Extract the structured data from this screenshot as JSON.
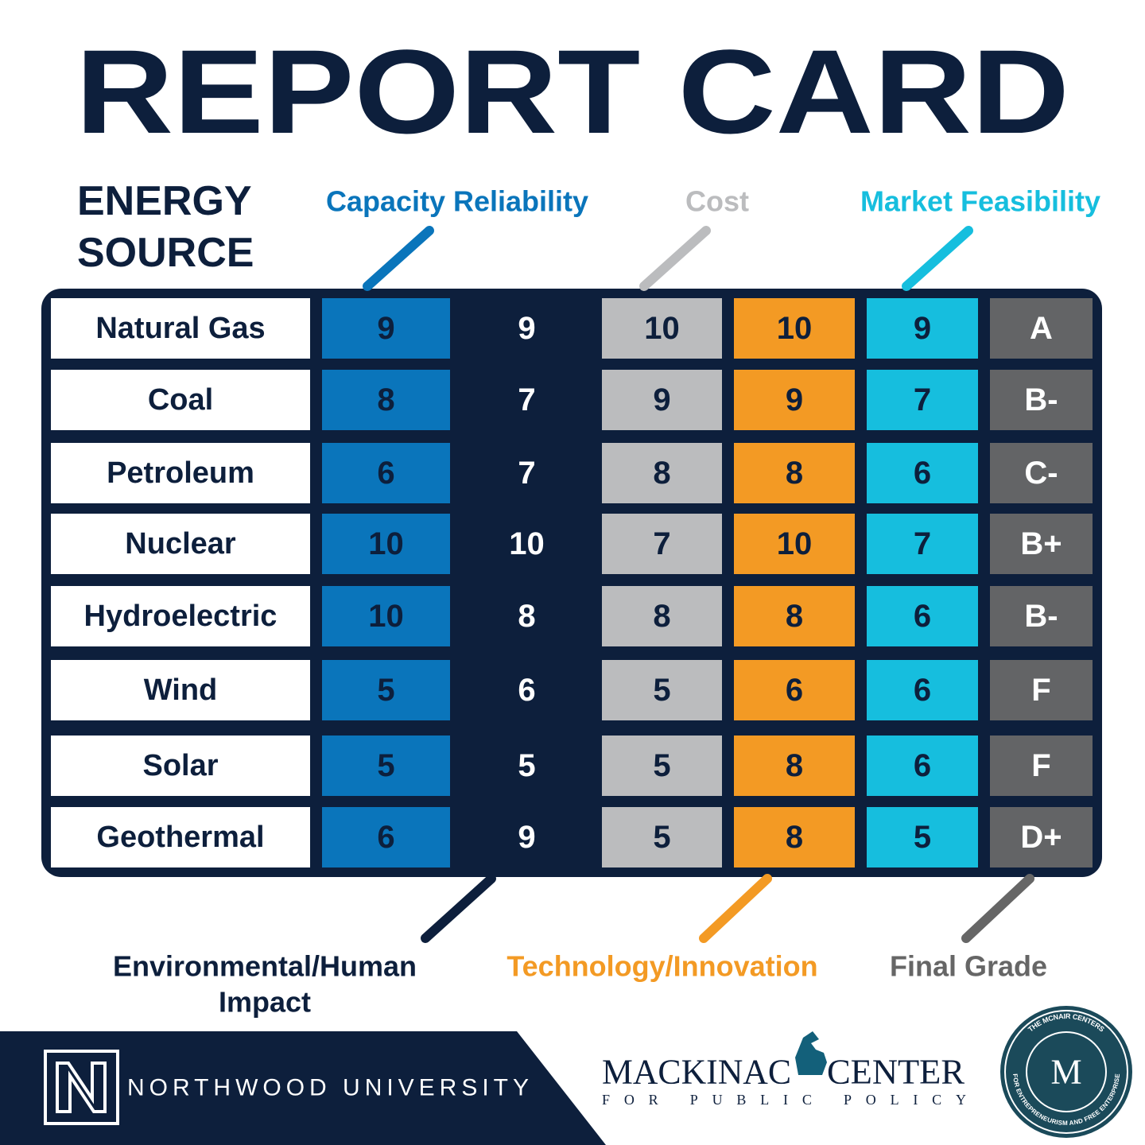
{
  "title": "REPORT CARD",
  "row_header": [
    "ENERGY",
    "SOURCE"
  ],
  "columns": [
    [
      "Capacity Reliability"
    ],
    [
      "Environmental/Human",
      "Impact"
    ],
    [
      "Cost"
    ],
    [
      "Technology/Innovation"
    ],
    [
      "Market Feasibility"
    ],
    [
      "Final Grade"
    ]
  ],
  "rows": [
    {
      "source": "Natural Gas",
      "scores": [
        9,
        9,
        10,
        10,
        9
      ],
      "grade": "A"
    },
    {
      "source": "Coal",
      "scores": [
        8,
        7,
        9,
        9,
        7
      ],
      "grade": "B-"
    },
    {
      "source": "Petroleum",
      "scores": [
        6,
        7,
        8,
        8,
        6
      ],
      "grade": "C-"
    },
    {
      "source": "Nuclear",
      "scores": [
        10,
        10,
        7,
        10,
        7
      ],
      "grade": "B+"
    },
    {
      "source": "Hydroelectric",
      "scores": [
        10,
        8,
        8,
        8,
        6
      ],
      "grade": "B-"
    },
    {
      "source": "Wind",
      "scores": [
        5,
        6,
        5,
        6,
        6
      ],
      "grade": "F"
    },
    {
      "source": "Solar",
      "scores": [
        5,
        5,
        5,
        8,
        6
      ],
      "grade": "F"
    },
    {
      "source": "Geothermal",
      "scores": [
        6,
        9,
        5,
        8,
        5
      ],
      "grade": "D+"
    }
  ],
  "footer": {
    "northwood": "NORTHWOOD UNIVERSITY",
    "mackinac": [
      "MACKINAC",
      "CENTER"
    ],
    "mackinac_sub": "FOR PUBLIC POLICY",
    "mcnair": [
      "THE MCNAIR CENTERS",
      "FOR ENTREPRENEURISM AND FREE ENTERPRISE",
      "M"
    ]
  }
}
